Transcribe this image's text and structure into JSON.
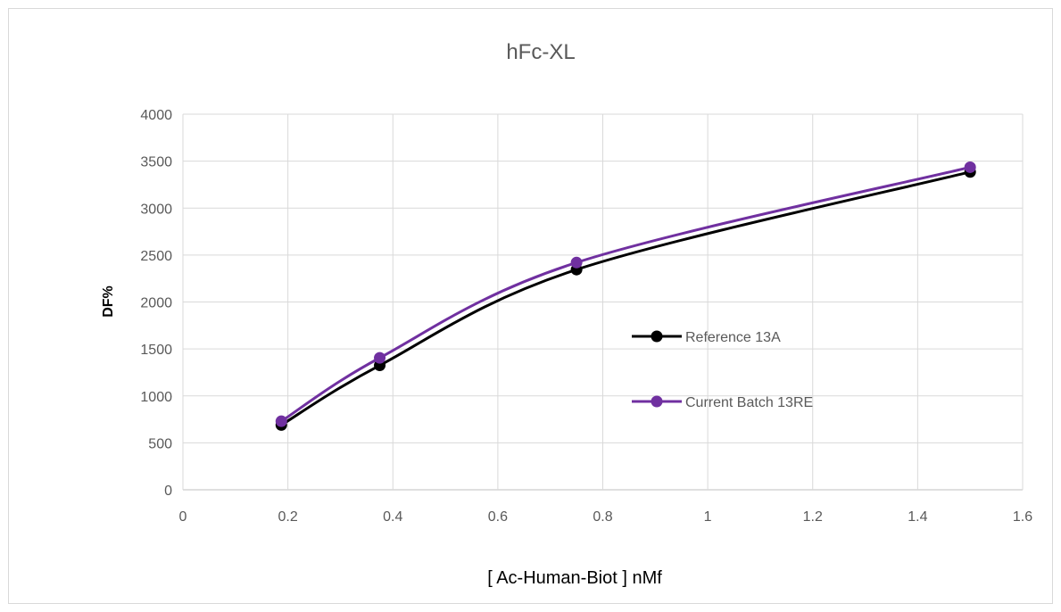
{
  "chart_data": {
    "type": "scatter",
    "title": "hFc-XL",
    "xlabel": "[ Ac-Human-Biot ] nMf",
    "ylabel": "DF%",
    "xlim": [
      0,
      1.6
    ],
    "ylim": [
      0,
      4000
    ],
    "xticks": [
      "0",
      "0.2",
      "0.4",
      "0.6",
      "0.8",
      "1",
      "1.2",
      "1.4",
      "1.6"
    ],
    "yticks": [
      "0",
      "500",
      "1000",
      "1500",
      "2000",
      "2500",
      "3000",
      "3500",
      "4000"
    ],
    "grid": true,
    "smooth_lines": true,
    "legend_position": "right",
    "series": [
      {
        "name": "Reference 13A",
        "color": "#000000",
        "x": [
          0.1875,
          0.375,
          0.75,
          1.5
        ],
        "y": [
          690,
          1325,
          2345,
          3385
        ]
      },
      {
        "name": "Current Batch 13RE",
        "color": "#7030a0",
        "x": [
          0.1875,
          0.375,
          0.75,
          1.5
        ],
        "y": [
          730,
          1405,
          2420,
          3435
        ]
      }
    ]
  }
}
